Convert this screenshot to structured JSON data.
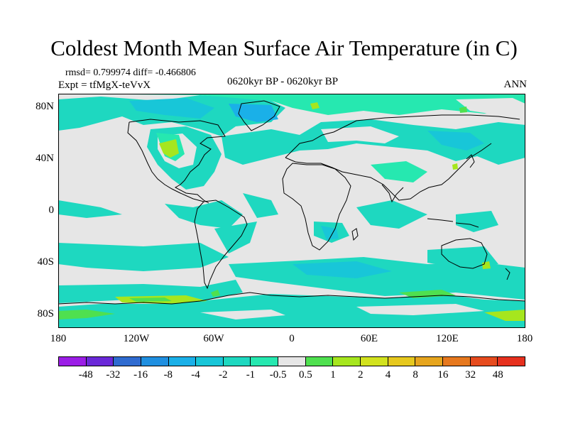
{
  "title": "Coldest Month Mean Surface Air Temperature (in C)",
  "stats": "rmsd= 0.799974  diff= -0.466806",
  "experiment": "Expt = tfMgX-teVvX",
  "period": "0620kyr BP - 0620kyr BP",
  "season": "ANN",
  "map": {
    "y_ticks": [
      "80N",
      "40N",
      "0",
      "40S",
      "80S"
    ],
    "x_ticks": [
      "180",
      "120W",
      "60W",
      "0",
      "60E",
      "120E",
      "180"
    ],
    "background_color": "#e6e6e6"
  },
  "colorbar": {
    "colors": [
      "#9b1ee6",
      "#6a28d8",
      "#2f6bd0",
      "#1f8fe0",
      "#1ab0e8",
      "#18c6d8",
      "#1ed8c0",
      "#26e8b0",
      "#e6e6e6",
      "#4fe04f",
      "#a6e61e",
      "#d2e21e",
      "#e6c81e",
      "#e6a51e",
      "#e6781e",
      "#e64b1e",
      "#e6301e"
    ],
    "labels": [
      "-48",
      "-32",
      "-16",
      "-8",
      "-4",
      "-2",
      "-1",
      "-0.5",
      "0.5",
      "1",
      "2",
      "4",
      "8",
      "16",
      "32",
      "48"
    ]
  }
}
